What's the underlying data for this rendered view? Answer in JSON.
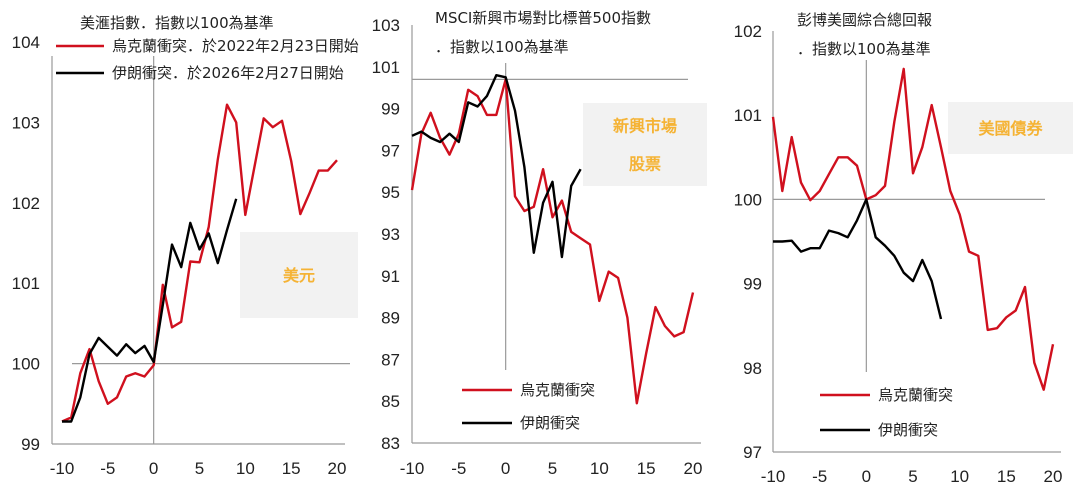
{
  "colors": {
    "ukraine": "#d0101e",
    "iran": "#000000",
    "axis": "#9a9a9a",
    "box_bg": "#f2f2f2",
    "box_text": "#f5b335"
  },
  "chart_data": [
    {
      "id": "usd",
      "type": "line",
      "title": "美滙指數．指數以100為基準",
      "title_lines": [
        "美滙指數．指數以100為基準"
      ],
      "box_label_lines": [
        "美元"
      ],
      "xlabel": "",
      "ylabel": "",
      "xlim": [
        -10,
        20
      ],
      "ylim": [
        99,
        104
      ],
      "xticks": [
        -10,
        -5,
        0,
        5,
        10,
        15,
        20
      ],
      "yticks": [
        99,
        100,
        101,
        102,
        103,
        104
      ],
      "baseline": 100,
      "grid": false,
      "legend": {
        "position": "top-left",
        "entries": [
          "烏克蘭衝突．於2022年2月23日開始",
          "伊朗衝突．於2026年2月27日開始"
        ]
      },
      "series": [
        {
          "name": "烏克蘭衝突",
          "color_key": "ukraine",
          "x": [
            -10,
            -9,
            -8,
            -7,
            -6,
            -5,
            -4,
            -3,
            -2,
            -1,
            0,
            1,
            2,
            3,
            4,
            5,
            6,
            7,
            8,
            9,
            10,
            11,
            12,
            13,
            14,
            15,
            16,
            17,
            18,
            19,
            20
          ],
          "y": [
            99.28,
            99.33,
            99.88,
            100.18,
            99.78,
            99.5,
            99.58,
            99.84,
            99.88,
            99.84,
            99.98,
            100.98,
            100.45,
            100.52,
            101.27,
            101.26,
            101.7,
            102.54,
            103.22,
            103.0,
            101.85,
            102.45,
            103.05,
            102.94,
            103.02,
            102.52,
            101.86,
            102.12,
            102.4,
            102.4,
            102.53
          ]
        },
        {
          "name": "伊朗衝突",
          "color_key": "iran",
          "x": [
            -10,
            -9,
            -8,
            -7,
            -6,
            -5,
            -4,
            -3,
            -2,
            -1,
            0,
            1,
            2,
            3,
            4,
            5,
            6,
            7,
            8,
            9
          ],
          "y": [
            99.28,
            99.28,
            99.58,
            100.12,
            100.32,
            100.21,
            100.1,
            100.24,
            100.13,
            100.22,
            100.02,
            100.73,
            101.48,
            101.2,
            101.75,
            101.42,
            101.62,
            101.25,
            101.66,
            102.05
          ]
        }
      ]
    },
    {
      "id": "msci",
      "type": "line",
      "title": "MSCI新興市場對比標普500指數．指數以100為基準",
      "title_lines": [
        "MSCI新興市場對比標普500指數",
        "．指數以100為基準"
      ],
      "box_label_lines": [
        "新興市場",
        "股票"
      ],
      "xlabel": "",
      "ylabel": "",
      "xlim": [
        -10,
        20
      ],
      "ylim": [
        83,
        103
      ],
      "xticks": [
        -10,
        -5,
        0,
        5,
        10,
        15,
        20
      ],
      "yticks": [
        83,
        85,
        87,
        89,
        91,
        93,
        95,
        97,
        99,
        101,
        103
      ],
      "baseline": 100.4,
      "grid": false,
      "legend": {
        "position": "bottom-left",
        "entries": [
          "烏克蘭衝突",
          "伊朗衝突"
        ]
      },
      "series": [
        {
          "name": "烏克蘭衝突",
          "color_key": "ukraine",
          "x": [
            -10,
            -9,
            -8,
            -7,
            -6,
            -5,
            -4,
            -3,
            -2,
            -1,
            0,
            1,
            2,
            3,
            4,
            5,
            6,
            7,
            8,
            9,
            10,
            11,
            12,
            13,
            14,
            15,
            16,
            17,
            18,
            19,
            20
          ],
          "y": [
            95.1,
            97.8,
            98.8,
            97.6,
            96.8,
            97.8,
            99.9,
            99.6,
            98.7,
            98.7,
            100.4,
            94.8,
            94.1,
            94.3,
            96.1,
            93.8,
            94.6,
            93.1,
            92.8,
            92.5,
            89.8,
            91.2,
            90.9,
            89.0,
            84.9,
            87.3,
            89.5,
            88.6,
            88.1,
            88.3,
            90.2
          ]
        },
        {
          "name": "伊朗衝突",
          "color_key": "iran",
          "x": [
            -10,
            -9,
            -8,
            -7,
            -6,
            -5,
            -4,
            -3,
            -2,
            -1,
            0,
            1,
            2,
            3,
            4,
            5,
            6,
            7,
            8
          ],
          "y": [
            97.7,
            97.9,
            97.6,
            97.4,
            97.8,
            97.4,
            99.3,
            99.1,
            99.6,
            100.6,
            100.5,
            98.9,
            96.2,
            92.1,
            94.5,
            95.5,
            91.9,
            95.3,
            96.1
          ]
        }
      ]
    },
    {
      "id": "bond",
      "type": "line",
      "title": "彭博美國綜合總回報．指數以100為基準",
      "title_lines": [
        "彭博美國綜合總回報",
        "．指數以100為基準"
      ],
      "box_label_lines": [
        "美國債券"
      ],
      "xlabel": "",
      "ylabel": "",
      "xlim": [
        -10,
        20
      ],
      "ylim": [
        97,
        102
      ],
      "xticks": [
        -10,
        -5,
        0,
        5,
        10,
        15,
        20
      ],
      "yticks": [
        97,
        98,
        99,
        100,
        101,
        102
      ],
      "baseline": 100,
      "grid": false,
      "legend": {
        "position": "bottom-left",
        "entries": [
          "烏克蘭衝突",
          "伊朗衝突"
        ]
      },
      "series": [
        {
          "name": "烏克蘭衝突",
          "color_key": "ukraine",
          "x": [
            -10,
            -9,
            -8,
            -7,
            -6,
            -5,
            -4,
            -3,
            -2,
            -1,
            0,
            1,
            2,
            3,
            4,
            5,
            6,
            7,
            8,
            9,
            10,
            11,
            12,
            13,
            14,
            15,
            16,
            17,
            18,
            19,
            20
          ],
          "y": [
            100.98,
            100.1,
            100.74,
            100.2,
            99.99,
            100.1,
            100.3,
            100.5,
            100.5,
            100.4,
            100.0,
            100.05,
            100.16,
            100.92,
            101.55,
            100.31,
            100.62,
            101.12,
            100.62,
            100.1,
            99.82,
            99.38,
            99.33,
            98.45,
            98.47,
            98.6,
            98.68,
            98.96,
            98.06,
            97.74,
            98.28
          ]
        },
        {
          "name": "伊朗衝突",
          "color_key": "iran",
          "x": [
            -10,
            -9,
            -8,
            -7,
            -6,
            -5,
            -4,
            -3,
            -2,
            -1,
            0,
            1,
            2,
            3,
            4,
            5,
            6,
            7,
            8
          ],
          "y": [
            99.5,
            99.5,
            99.51,
            99.38,
            99.42,
            99.42,
            99.63,
            99.6,
            99.55,
            99.75,
            100.0,
            99.55,
            99.45,
            99.33,
            99.13,
            99.03,
            99.28,
            99.03,
            98.58
          ]
        }
      ]
    }
  ]
}
